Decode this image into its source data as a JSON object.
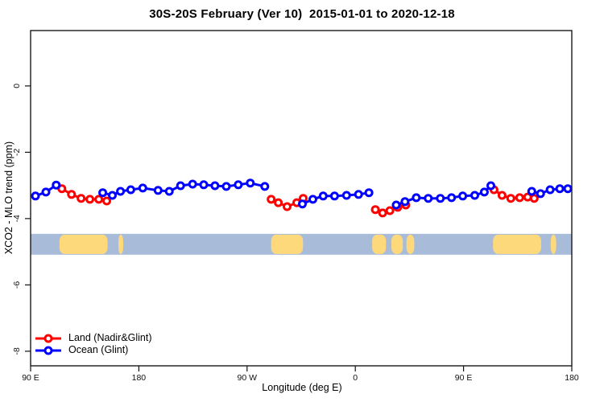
{
  "title": "30S-20S February (Ver 10)  2015-01-01 to 2020-12-18",
  "chart_data": {
    "type": "line",
    "title": "30S-20S February (Ver 10)  2015-01-01 to 2020-12-18",
    "xlabel": "Longitude (deg E)",
    "ylabel": "XCO2 - MLO trend (ppm)",
    "xlim": [
      90,
      540
    ],
    "ylim": [
      -8.44,
      1.67
    ],
    "grid": false,
    "legend_position": "bottom-left",
    "x_ticks": [
      {
        "value": 90,
        "label": "90 E"
      },
      {
        "value": 180,
        "label": "180"
      },
      {
        "value": 270,
        "label": "90 W"
      },
      {
        "value": 360,
        "label": "0"
      },
      {
        "value": 450,
        "label": "90 E"
      },
      {
        "value": 540,
        "label": "180"
      }
    ],
    "y_ticks": [
      {
        "value": 0,
        "label": "0"
      },
      {
        "value": -2,
        "label": "-2"
      },
      {
        "value": -4,
        "label": "-4"
      },
      {
        "value": -6,
        "label": "-6"
      },
      {
        "value": -8,
        "label": "-8"
      }
    ],
    "series": [
      {
        "name": "Land (Nadir&Glint)",
        "color": "#ff0000",
        "marker": "open-circle",
        "segments": [
          [
            [
              116,
              -3.1
            ],
            [
              124,
              -3.27
            ],
            [
              132,
              -3.39
            ],
            [
              139.3,
              -3.42
            ],
            [
              146.7,
              -3.42
            ],
            [
              153.3,
              -3.47
            ]
          ],
          [
            [
              290,
              -3.42
            ],
            [
              296,
              -3.52
            ],
            [
              303.3,
              -3.64
            ],
            [
              311.3,
              -3.52
            ],
            [
              316.7,
              -3.39
            ]
          ],
          [
            [
              376.7,
              -3.73
            ],
            [
              382.7,
              -3.83
            ],
            [
              388.7,
              -3.76
            ],
            [
              395.3,
              -3.66
            ],
            [
              402,
              -3.59
            ]
          ],
          [
            [
              475.3,
              -3.13
            ],
            [
              482,
              -3.3
            ],
            [
              489.3,
              -3.39
            ],
            [
              496.7,
              -3.37
            ],
            [
              503.3,
              -3.35
            ],
            [
              508.7,
              -3.39
            ]
          ]
        ]
      },
      {
        "name": "Ocean (Glint)",
        "color": "#0000ff",
        "marker": "open-circle",
        "segments": [
          [
            [
              94,
              -3.32
            ],
            [
              102.7,
              -3.2
            ],
            [
              111.3,
              -2.99
            ]
          ],
          [
            [
              150,
              -3.22
            ],
            [
              158,
              -3.3
            ],
            [
              164.7,
              -3.18
            ],
            [
              173.3,
              -3.13
            ],
            [
              183.3,
              -3.08
            ],
            [
              196,
              -3.15
            ],
            [
              205.3,
              -3.18
            ],
            [
              214.7,
              -3.01
            ],
            [
              224.7,
              -2.96
            ],
            [
              234,
              -2.98
            ],
            [
              243.3,
              -3.01
            ],
            [
              252.7,
              -3.03
            ],
            [
              262.7,
              -2.98
            ],
            [
              272.7,
              -2.93
            ],
            [
              284.7,
              -3.03
            ]
          ],
          [
            [
              316,
              -3.56
            ],
            [
              324.7,
              -3.42
            ],
            [
              333.3,
              -3.32
            ],
            [
              342.7,
              -3.32
            ],
            [
              352.7,
              -3.3
            ],
            [
              362.7,
              -3.27
            ],
            [
              371.3,
              -3.22
            ]
          ],
          [
            [
              394,
              -3.59
            ],
            [
              401.3,
              -3.49
            ],
            [
              410.7,
              -3.37
            ],
            [
              420.7,
              -3.39
            ],
            [
              430.7,
              -3.39
            ],
            [
              440,
              -3.37
            ],
            [
              449.3,
              -3.32
            ],
            [
              459.3,
              -3.3
            ],
            [
              467.3,
              -3.2
            ],
            [
              472.7,
              -3.01
            ]
          ],
          [
            [
              506.7,
              -3.18
            ],
            [
              514,
              -3.25
            ],
            [
              522,
              -3.13
            ],
            [
              530,
              -3.1
            ],
            [
              536.7,
              -3.1
            ]
          ]
        ]
      }
    ],
    "map_band": {
      "description": "30S-20S latitude strip map",
      "y_range_ppm": [
        -4.46,
        -5.09
      ],
      "ocean_color": "#a8bcda",
      "land_color": "#fdd97c",
      "land_segments_lon": [
        [
          114,
          154
        ],
        [
          163,
          167
        ],
        [
          290,
          316.5
        ],
        [
          374,
          385.5
        ],
        [
          390,
          399.5
        ],
        [
          402.5,
          409
        ],
        [
          474.5,
          514.5
        ],
        [
          522.5,
          527
        ]
      ]
    }
  },
  "legend": {
    "items": [
      {
        "label": "Land (Nadir&Glint)",
        "color": "#ff0000"
      },
      {
        "label": "Ocean (Glint)",
        "color": "#0000ff"
      }
    ]
  }
}
